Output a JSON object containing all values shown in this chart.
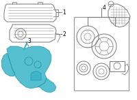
{
  "background_color": "#ffffff",
  "fig_width": 2.0,
  "fig_height": 1.47,
  "dpi": 100,
  "part_color_lines": "#777777",
  "part_color_blue": "#3ab5c8",
  "label_color": "#000000",
  "box_color": "#aaaaaa",
  "label_fontsize": 5.5
}
